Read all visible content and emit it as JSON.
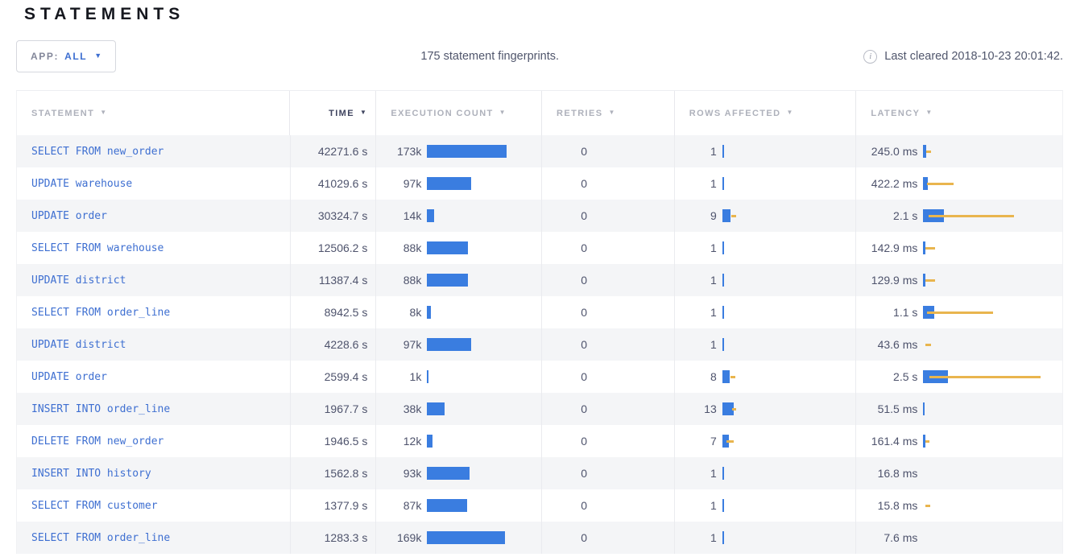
{
  "page": {
    "title": "STATEMENTS"
  },
  "toolbar": {
    "app_filter_label": "APP:",
    "app_filter_value": "ALL",
    "summary": "175 statement fingerprints.",
    "last_cleared": "Last cleared 2018-10-23 20:01:42.",
    "info_icon_glyph": "i"
  },
  "colors": {
    "bar_blue": "#3a7de0",
    "bar_yellow": "#e9b54e",
    "link_blue": "#3e6fd1"
  },
  "table": {
    "columns": [
      {
        "label": "STATEMENT",
        "sorted": false
      },
      {
        "label": "TIME",
        "sorted": true
      },
      {
        "label": "EXECUTION COUNT",
        "sorted": false
      },
      {
        "label": "RETRIES",
        "sorted": false
      },
      {
        "label": "ROWS AFFECTED",
        "sorted": false
      },
      {
        "label": "LATENCY",
        "sorted": false
      }
    ],
    "rows": [
      {
        "statement": "SELECT FROM new_order",
        "time": "42271.6 s",
        "exec_count": "173k",
        "exec_bar": 99,
        "retries": "0",
        "rows_affected": "1",
        "rows_bar": {
          "blue": 2,
          "yellow_start": 0,
          "yellow_width": 0
        },
        "latency": "245.0 ms",
        "latency_bar": {
          "blue": 4,
          "yellow_start": 4,
          "yellow_width": 6
        }
      },
      {
        "statement": "UPDATE warehouse",
        "time": "41029.6 s",
        "exec_count": "97k",
        "exec_bar": 55,
        "retries": "0",
        "rows_affected": "1",
        "rows_bar": {
          "blue": 2,
          "yellow_start": 0,
          "yellow_width": 0
        },
        "latency": "422.2 ms",
        "latency_bar": {
          "blue": 6,
          "yellow_start": 5,
          "yellow_width": 33
        }
      },
      {
        "statement": "UPDATE order",
        "time": "30324.7 s",
        "exec_count": "14k",
        "exec_bar": 9,
        "retries": "0",
        "rows_affected": "9",
        "rows_bar": {
          "blue": 10,
          "yellow_start": 11,
          "yellow_width": 6
        },
        "latency": "2.1 s",
        "latency_bar": {
          "blue": 26,
          "yellow_start": 7,
          "yellow_width": 106
        }
      },
      {
        "statement": "SELECT FROM warehouse",
        "time": "12506.2 s",
        "exec_count": "88k",
        "exec_bar": 51,
        "retries": "0",
        "rows_affected": "1",
        "rows_bar": {
          "blue": 2,
          "yellow_start": 0,
          "yellow_width": 0
        },
        "latency": "142.9 ms",
        "latency_bar": {
          "blue": 3,
          "yellow_start": 3,
          "yellow_width": 12
        }
      },
      {
        "statement": "UPDATE district",
        "time": "11387.4 s",
        "exec_count": "88k",
        "exec_bar": 51,
        "retries": "0",
        "rows_affected": "1",
        "rows_bar": {
          "blue": 2,
          "yellow_start": 0,
          "yellow_width": 0
        },
        "latency": "129.9 ms",
        "latency_bar": {
          "blue": 3,
          "yellow_start": 3,
          "yellow_width": 12
        }
      },
      {
        "statement": "SELECT FROM order_line",
        "time": "8942.5 s",
        "exec_count": "8k",
        "exec_bar": 5,
        "retries": "0",
        "rows_affected": "1",
        "rows_bar": {
          "blue": 2,
          "yellow_start": 0,
          "yellow_width": 0
        },
        "latency": "1.1 s",
        "latency_bar": {
          "blue": 14,
          "yellow_start": 5,
          "yellow_width": 82
        }
      },
      {
        "statement": "UPDATE district",
        "time": "4228.6 s",
        "exec_count": "97k",
        "exec_bar": 55,
        "retries": "0",
        "rows_affected": "1",
        "rows_bar": {
          "blue": 2,
          "yellow_start": 0,
          "yellow_width": 0
        },
        "latency": "43.6 ms",
        "latency_bar": {
          "blue": 0,
          "yellow_start": 3,
          "yellow_width": 7
        }
      },
      {
        "statement": "UPDATE order",
        "time": "2599.4 s",
        "exec_count": "1k",
        "exec_bar": 2,
        "retries": "0",
        "rows_affected": "8",
        "rows_bar": {
          "blue": 9,
          "yellow_start": 10,
          "yellow_width": 6
        },
        "latency": "2.5 s",
        "latency_bar": {
          "blue": 31,
          "yellow_start": 8,
          "yellow_width": 138
        }
      },
      {
        "statement": "INSERT INTO order_line",
        "time": "1967.7 s",
        "exec_count": "38k",
        "exec_bar": 22,
        "retries": "0",
        "rows_affected": "13",
        "rows_bar": {
          "blue": 14,
          "yellow_start": 12,
          "yellow_width": 5
        },
        "latency": "51.5 ms",
        "latency_bar": {
          "blue": 2,
          "yellow_start": 0,
          "yellow_width": 0
        }
      },
      {
        "statement": "DELETE FROM new_order",
        "time": "1946.5 s",
        "exec_count": "12k",
        "exec_bar": 7,
        "retries": "0",
        "rows_affected": "7",
        "rows_bar": {
          "blue": 8,
          "yellow_start": 5,
          "yellow_width": 9
        },
        "latency": "161.4 ms",
        "latency_bar": {
          "blue": 3,
          "yellow_start": 3,
          "yellow_width": 5
        }
      },
      {
        "statement": "INSERT INTO history",
        "time": "1562.8 s",
        "exec_count": "93k",
        "exec_bar": 53,
        "retries": "0",
        "rows_affected": "1",
        "rows_bar": {
          "blue": 2,
          "yellow_start": 0,
          "yellow_width": 0
        },
        "latency": "16.8 ms",
        "latency_bar": {
          "blue": 0,
          "yellow_start": 0,
          "yellow_width": 0
        }
      },
      {
        "statement": "SELECT FROM customer",
        "time": "1377.9 s",
        "exec_count": "87k",
        "exec_bar": 50,
        "retries": "0",
        "rows_affected": "1",
        "rows_bar": {
          "blue": 2,
          "yellow_start": 0,
          "yellow_width": 0
        },
        "latency": "15.8 ms",
        "latency_bar": {
          "blue": 0,
          "yellow_start": 3,
          "yellow_width": 6
        }
      },
      {
        "statement": "SELECT FROM order_line",
        "time": "1283.3 s",
        "exec_count": "169k",
        "exec_bar": 97,
        "retries": "0",
        "rows_affected": "1",
        "rows_bar": {
          "blue": 2,
          "yellow_start": 0,
          "yellow_width": 0
        },
        "latency": "7.6 ms",
        "latency_bar": {
          "blue": 0,
          "yellow_start": 0,
          "yellow_width": 0
        }
      }
    ]
  }
}
